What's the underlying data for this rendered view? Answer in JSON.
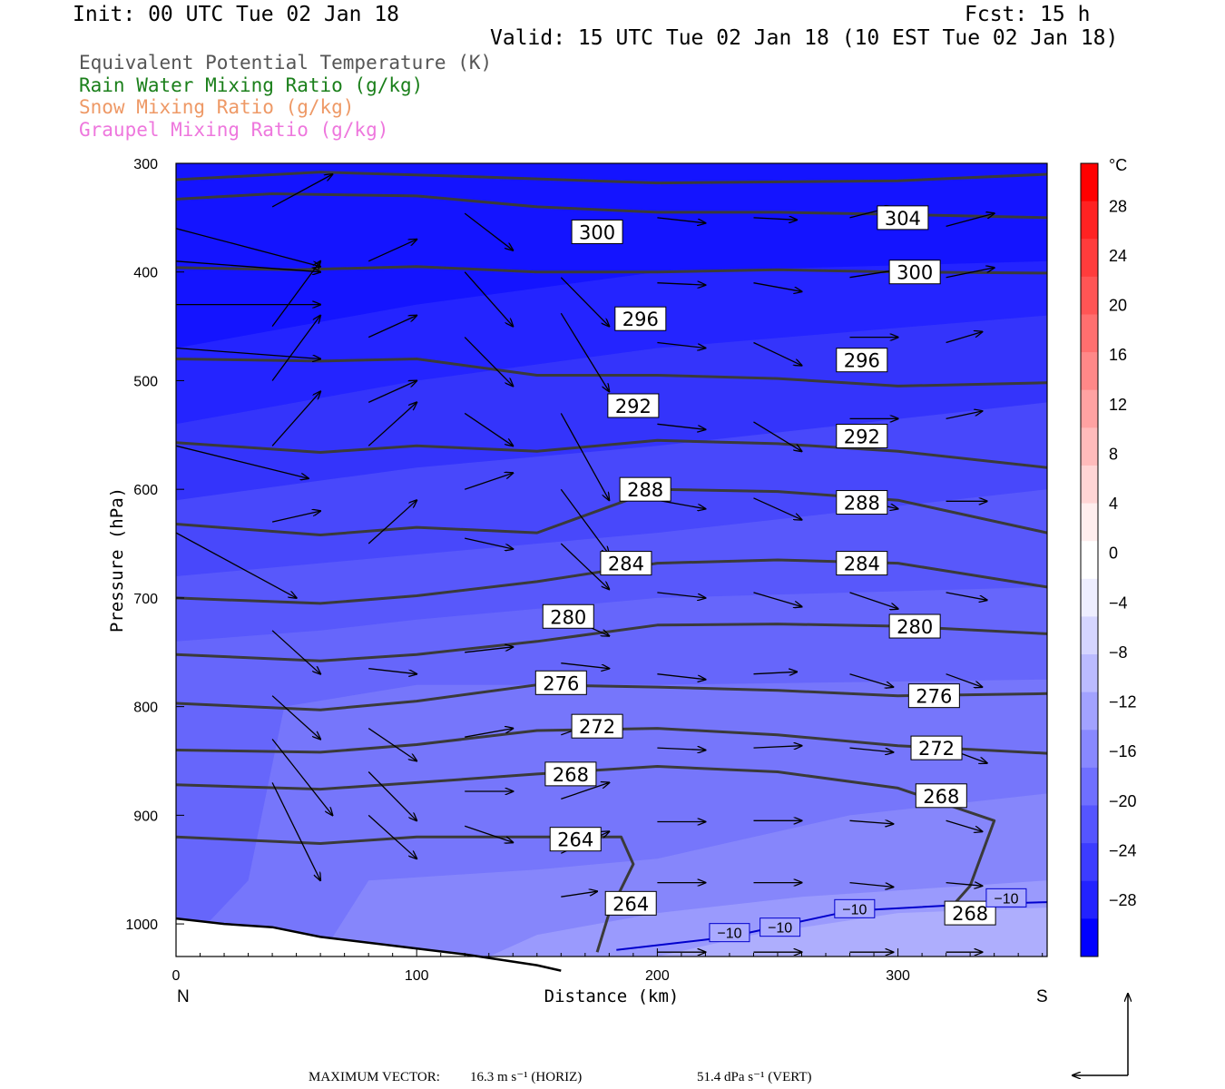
{
  "header": {
    "init": "Init: 00 UTC Tue 02 Jan 18",
    "fcst": "Fcst:   15 h",
    "valid": "Valid: 15 UTC Tue 02 Jan 18 (10 EST Tue 02 Jan 18)"
  },
  "legend": [
    {
      "label": "Equivalent Potential Temperature (K)",
      "color": "#555555"
    },
    {
      "label": "Rain Water Mixing Ratio (g/kg)",
      "color": "#1a7f1a"
    },
    {
      "label": "Snow Mixing Ratio (g/kg)",
      "color": "#ee9966"
    },
    {
      "label": "Graupel Mixing Ratio (g/kg)",
      "color": "#ee77dd"
    }
  ],
  "footer": {
    "max_vector": "MAXIMUM VECTOR:",
    "horiz": "16.3 m s⁻¹ (HORIZ)",
    "vert": "51.4 dPa s⁻¹ (VERT)"
  },
  "colorbar": {
    "unit": "°C",
    "ticks": [
      "28",
      "24",
      "20",
      "16",
      "12",
      "8",
      "4",
      "0",
      "−4",
      "−8",
      "−12",
      "−16",
      "−20",
      "−24",
      "−28"
    ],
    "colors": [
      "#ff0000",
      "#ff2222",
      "#ff3c3c",
      "#ff5555",
      "#ff6f6f",
      "#ff8888",
      "#ffa2a2",
      "#ffbbbb",
      "#ffd5d5",
      "#ffeeee",
      "#ffffff",
      "#eeeeff",
      "#d5d5ff",
      "#bbbbff",
      "#a2a2ff",
      "#8888ff",
      "#6f6fff",
      "#5555ff",
      "#3c3cff",
      "#2222ff",
      "#0000ff"
    ]
  },
  "chart_data": {
    "type": "contour cross-section",
    "xlabel": "Distance (km)",
    "ylabel": "Pressure (hPa)",
    "xlim": [
      0,
      362
    ],
    "ylim": [
      1030,
      300
    ],
    "x_ticks": [
      "0",
      "100",
      "200",
      "300"
    ],
    "y_ticks": [
      "300",
      "400",
      "500",
      "600",
      "700",
      "800",
      "900",
      "1000"
    ],
    "x_endpoints": {
      "left": "N",
      "right": "S"
    },
    "theta_e_contours": [
      {
        "value": 304,
        "label": "304",
        "label_positions": [
          [
            302,
            350
          ]
        ],
        "points": [
          [
            0,
            333
          ],
          [
            40,
            328
          ],
          [
            100,
            330
          ],
          [
            150,
            340
          ],
          [
            200,
            345
          ],
          [
            250,
            345
          ],
          [
            300,
            347
          ],
          [
            362,
            350
          ]
        ]
      },
      {
        "value": 300,
        "label": "300",
        "label_positions": [
          [
            175,
            363
          ],
          [
            307,
            400
          ]
        ],
        "points": [
          [
            0,
            396
          ],
          [
            50,
            398
          ],
          [
            100,
            395
          ],
          [
            150,
            400
          ],
          [
            200,
            400
          ],
          [
            250,
            398
          ],
          [
            300,
            400
          ],
          [
            362,
            401
          ]
        ]
      },
      {
        "value": 296,
        "label": "296",
        "label_positions": [
          [
            193,
            443
          ],
          [
            285,
            481
          ]
        ],
        "points": [
          [
            0,
            480
          ],
          [
            60,
            482
          ],
          [
            100,
            480
          ],
          [
            150,
            495
          ],
          [
            200,
            495
          ],
          [
            250,
            498
          ],
          [
            300,
            505
          ],
          [
            362,
            502
          ]
        ]
      },
      {
        "value": 292,
        "label": "292",
        "label_positions": [
          [
            190,
            523
          ],
          [
            285,
            551
          ]
        ],
        "points": [
          [
            0,
            557
          ],
          [
            60,
            566
          ],
          [
            100,
            560
          ],
          [
            150,
            565
          ],
          [
            200,
            555
          ],
          [
            250,
            558
          ],
          [
            300,
            565
          ],
          [
            362,
            580
          ]
        ]
      },
      {
        "value": 288,
        "label": "288",
        "label_positions": [
          [
            195,
            600
          ],
          [
            285,
            612
          ]
        ],
        "points": [
          [
            0,
            632
          ],
          [
            60,
            642
          ],
          [
            100,
            635
          ],
          [
            150,
            640
          ],
          [
            200,
            600
          ],
          [
            250,
            602
          ],
          [
            300,
            610
          ],
          [
            362,
            640
          ]
        ]
      },
      {
        "value": 284,
        "label": "284",
        "label_positions": [
          [
            187,
            668
          ],
          [
            285,
            668
          ]
        ],
        "points": [
          [
            0,
            700
          ],
          [
            60,
            705
          ],
          [
            100,
            698
          ],
          [
            150,
            685
          ],
          [
            200,
            668
          ],
          [
            250,
            665
          ],
          [
            300,
            668
          ],
          [
            362,
            690
          ]
        ]
      },
      {
        "value": 280,
        "label": "280",
        "label_positions": [
          [
            163,
            717
          ],
          [
            307,
            726
          ]
        ],
        "points": [
          [
            0,
            752
          ],
          [
            60,
            758
          ],
          [
            100,
            752
          ],
          [
            150,
            740
          ],
          [
            200,
            725
          ],
          [
            250,
            724
          ],
          [
            300,
            726
          ],
          [
            362,
            733
          ]
        ]
      },
      {
        "value": 276,
        "label": "276",
        "label_positions": [
          [
            160,
            778
          ],
          [
            315,
            790
          ]
        ],
        "points": [
          [
            0,
            797
          ],
          [
            60,
            803
          ],
          [
            100,
            795
          ],
          [
            150,
            780
          ],
          [
            200,
            782
          ],
          [
            250,
            785
          ],
          [
            300,
            790
          ],
          [
            362,
            788
          ]
        ]
      },
      {
        "value": 272,
        "label": "272",
        "label_positions": [
          [
            175,
            818
          ],
          [
            316,
            838
          ]
        ],
        "points": [
          [
            0,
            840
          ],
          [
            60,
            842
          ],
          [
            100,
            835
          ],
          [
            150,
            822
          ],
          [
            200,
            820
          ],
          [
            250,
            826
          ],
          [
            300,
            836
          ],
          [
            362,
            843
          ]
        ]
      },
      {
        "value": 268,
        "label": "268",
        "label_positions": [
          [
            164,
            862
          ],
          [
            318,
            882
          ],
          [
            330,
            990
          ]
        ],
        "points": [
          [
            0,
            872
          ],
          [
            60,
            876
          ],
          [
            100,
            870
          ],
          [
            150,
            862
          ],
          [
            200,
            855
          ],
          [
            250,
            860
          ],
          [
            300,
            875
          ],
          [
            340,
            905
          ],
          [
            330,
            965
          ],
          [
            320,
            990
          ]
        ]
      },
      {
        "value": 264,
        "label": "264",
        "label_positions": [
          [
            166,
            922
          ],
          [
            189,
            981
          ]
        ],
        "points": [
          [
            0,
            920
          ],
          [
            60,
            926
          ],
          [
            100,
            920
          ],
          [
            150,
            920
          ],
          [
            185,
            920
          ],
          [
            190,
            945
          ],
          [
            180,
            990
          ],
          [
            175,
            1026
          ]
        ]
      }
    ],
    "temperature_contours": [
      {
        "value": -10,
        "label": "−10",
        "label_positions": [
          [
            230,
            1008
          ],
          [
            251,
            1003
          ],
          [
            282,
            986
          ],
          [
            345,
            976
          ]
        ]
      }
    ],
    "temperature_shading_c": {
      "range": [
        -30,
        -10
      ],
      "note": "colder aloft, warmer near surface"
    },
    "vector_scale": {
      "max_horiz": 16.3,
      "max_horiz_units": "m s-1",
      "max_vert": 51.4,
      "max_vert_units": "dPa s-1"
    }
  }
}
